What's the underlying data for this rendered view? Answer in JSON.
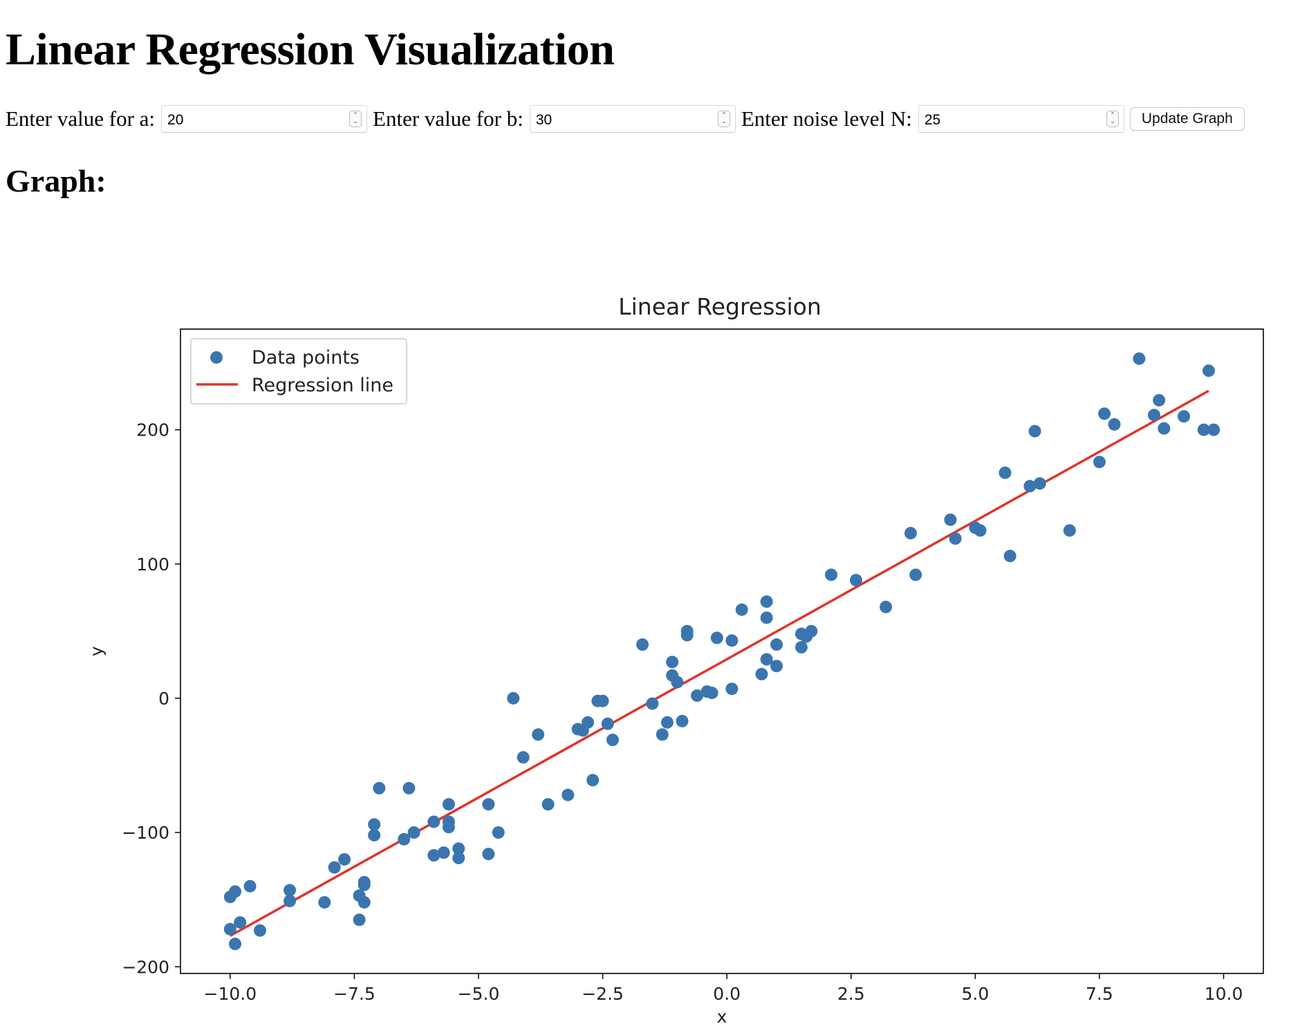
{
  "page": {
    "title": "Linear Regression Visualization",
    "graph_heading": "Graph:"
  },
  "controls": {
    "a_label": "Enter value for a:",
    "a_value": "20",
    "b_label": "Enter value for b:",
    "b_value": "30",
    "n_label": "Enter noise level N:",
    "n_value": "25",
    "update_label": "Update Graph"
  },
  "colors": {
    "points": "#3b75af",
    "line": "#e0342b"
  },
  "chart_data": {
    "type": "scatter",
    "title": "Linear Regression",
    "xlabel": "x",
    "ylabel": "y",
    "xlim": [
      -11,
      10.8
    ],
    "ylim": [
      -205,
      275
    ],
    "xticks": [
      -10,
      -7.5,
      -5,
      -2.5,
      0,
      2.5,
      5,
      7.5,
      10
    ],
    "xtick_labels": [
      "−10.0",
      "−7.5",
      "−5.0",
      "−2.5",
      "0.0",
      "2.5",
      "5.0",
      "7.5",
      "10.0"
    ],
    "yticks": [
      -200,
      -100,
      0,
      100,
      200
    ],
    "ytick_labels": [
      "−200",
      "−100",
      "0",
      "100",
      "200"
    ],
    "legend_position": "top-left",
    "series": [
      {
        "name": "Data points",
        "kind": "scatter",
        "points": [
          [
            -10,
            -172
          ],
          [
            -10,
            -148
          ],
          [
            -9.9,
            -183
          ],
          [
            -9.9,
            -144
          ],
          [
            -9.8,
            -167
          ],
          [
            -9.6,
            -140
          ],
          [
            -9.4,
            -173
          ],
          [
            -8.8,
            -151
          ],
          [
            -8.8,
            -143
          ],
          [
            -8.1,
            -152
          ],
          [
            -7.9,
            -126
          ],
          [
            -7.7,
            -120
          ],
          [
            -7.4,
            -165
          ],
          [
            -7.4,
            -147
          ],
          [
            -7.3,
            -137
          ],
          [
            -7.3,
            -139
          ],
          [
            -7.3,
            -152
          ],
          [
            -7.1,
            -94
          ],
          [
            -7.1,
            -102
          ],
          [
            -7,
            -67
          ],
          [
            -6.5,
            -105
          ],
          [
            -6.4,
            -67
          ],
          [
            -6.3,
            -100
          ],
          [
            -5.9,
            -92
          ],
          [
            -5.9,
            -117
          ],
          [
            -5.7,
            -115
          ],
          [
            -5.6,
            -79
          ],
          [
            -5.6,
            -92
          ],
          [
            -5.6,
            -96
          ],
          [
            -5.4,
            -112
          ],
          [
            -5.4,
            -119
          ],
          [
            -4.8,
            -79
          ],
          [
            -4.8,
            -116
          ],
          [
            -4.6,
            -100
          ],
          [
            -4.3,
            0
          ],
          [
            -4.1,
            -44
          ],
          [
            -3.8,
            -27
          ],
          [
            -3.6,
            -79
          ],
          [
            -3.2,
            -72
          ],
          [
            -3,
            -23
          ],
          [
            -2.9,
            -24
          ],
          [
            -2.8,
            -18
          ],
          [
            -2.7,
            -61
          ],
          [
            -2.6,
            -2
          ],
          [
            -2.5,
            -2
          ],
          [
            -2.4,
            -19
          ],
          [
            -2.3,
            -31
          ],
          [
            -1.7,
            40
          ],
          [
            -1.5,
            -4
          ],
          [
            -1.3,
            -27
          ],
          [
            -1.2,
            -18
          ],
          [
            -1.1,
            27
          ],
          [
            -1.1,
            17
          ],
          [
            -1,
            12
          ],
          [
            -0.9,
            -17
          ],
          [
            -0.8,
            50
          ],
          [
            -0.8,
            47
          ],
          [
            -0.6,
            2
          ],
          [
            -0.4,
            5
          ],
          [
            -0.3,
            4
          ],
          [
            -0.2,
            45
          ],
          [
            0.1,
            43
          ],
          [
            0.1,
            7
          ],
          [
            0.3,
            66
          ],
          [
            0.7,
            18
          ],
          [
            0.8,
            29
          ],
          [
            0.8,
            72
          ],
          [
            0.8,
            60
          ],
          [
            1,
            40
          ],
          [
            1,
            24
          ],
          [
            1.5,
            38
          ],
          [
            1.5,
            48
          ],
          [
            1.6,
            46
          ],
          [
            1.7,
            50
          ],
          [
            2.1,
            92
          ],
          [
            2.6,
            88
          ],
          [
            3.2,
            68
          ],
          [
            3.7,
            123
          ],
          [
            3.8,
            92
          ],
          [
            4.5,
            133
          ],
          [
            4.6,
            119
          ],
          [
            5,
            127
          ],
          [
            5.1,
            125
          ],
          [
            5.6,
            168
          ],
          [
            5.7,
            106
          ],
          [
            6.1,
            158
          ],
          [
            6.2,
            199
          ],
          [
            6.3,
            160
          ],
          [
            6.9,
            125
          ],
          [
            7.5,
            176
          ],
          [
            7.6,
            212
          ],
          [
            7.8,
            204
          ],
          [
            8.3,
            253
          ],
          [
            8.6,
            211
          ],
          [
            8.7,
            222
          ],
          [
            8.8,
            201
          ],
          [
            9.2,
            210
          ],
          [
            9.6,
            200
          ],
          [
            9.7,
            244
          ],
          [
            9.8,
            200
          ]
        ]
      },
      {
        "name": "Regression line",
        "kind": "line",
        "points": [
          [
            -10,
            -177
          ],
          [
            9.7,
            229
          ]
        ]
      }
    ]
  }
}
